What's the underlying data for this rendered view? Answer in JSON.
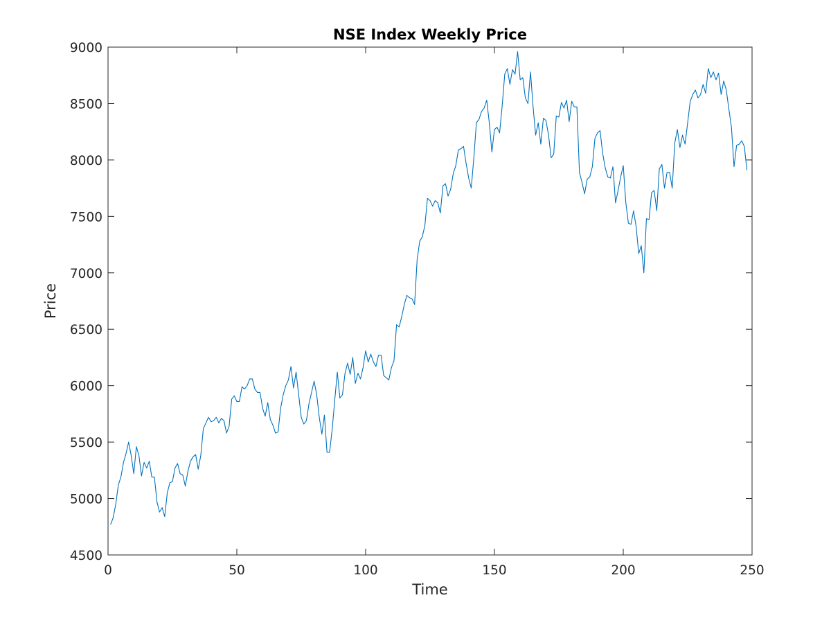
{
  "chart_data": {
    "type": "line",
    "title": "NSE Index Weekly Price",
    "xlabel": "Time",
    "ylabel": "Price",
    "xlim": [
      0,
      250
    ],
    "ylim": [
      4500,
      9000
    ],
    "x_ticks": [
      0,
      50,
      100,
      150,
      200,
      250
    ],
    "y_ticks": [
      4500,
      5000,
      5500,
      6000,
      6500,
      7000,
      7500,
      8000,
      8500,
      9000
    ],
    "grid": false,
    "legend": "none",
    "line_color": "#0072BD",
    "series": [
      {
        "name": "",
        "x_start": 1,
        "x_step": 1,
        "values": [
          4770,
          4830,
          4950,
          5120,
          5190,
          5320,
          5400,
          5500,
          5380,
          5220,
          5460,
          5380,
          5200,
          5320,
          5270,
          5330,
          5190,
          5190,
          4970,
          4880,
          4920,
          4840,
          5050,
          5140,
          5150,
          5270,
          5310,
          5220,
          5210,
          5110,
          5240,
          5330,
          5370,
          5390,
          5260,
          5380,
          5620,
          5670,
          5720,
          5680,
          5690,
          5720,
          5670,
          5710,
          5690,
          5580,
          5640,
          5880,
          5910,
          5860,
          5860,
          5990,
          5970,
          6000,
          6060,
          6060,
          5970,
          5940,
          5940,
          5800,
          5730,
          5850,
          5700,
          5650,
          5580,
          5590,
          5800,
          5920,
          6000,
          6050,
          6170,
          5980,
          6120,
          5920,
          5720,
          5660,
          5690,
          5840,
          5940,
          6040,
          5920,
          5720,
          5570,
          5740,
          5410,
          5410,
          5610,
          5870,
          6120,
          5890,
          5920,
          6110,
          6200,
          6100,
          6250,
          6020,
          6110,
          6060,
          6160,
          6310,
          6210,
          6280,
          6210,
          6170,
          6270,
          6270,
          6090,
          6070,
          6050,
          6160,
          6220,
          6540,
          6520,
          6610,
          6720,
          6800,
          6780,
          6770,
          6720,
          7120,
          7280,
          7320,
          7420,
          7660,
          7640,
          7590,
          7640,
          7620,
          7530,
          7770,
          7790,
          7680,
          7740,
          7880,
          7950,
          8090,
          8100,
          8120,
          7970,
          7840,
          7750,
          8020,
          8330,
          8360,
          8430,
          8460,
          8530,
          8330,
          8070,
          8270,
          8290,
          8240,
          8480,
          8760,
          8810,
          8670,
          8800,
          8760,
          8960,
          8710,
          8730,
          8550,
          8500,
          8780,
          8470,
          8220,
          8330,
          8140,
          8370,
          8350,
          8220,
          8020,
          8050,
          8390,
          8380,
          8510,
          8460,
          8530,
          8340,
          8520,
          8470,
          8470,
          7890,
          7800,
          7700,
          7830,
          7850,
          7940,
          8190,
          8240,
          8260,
          8060,
          7930,
          7850,
          7840,
          7940,
          7620,
          7730,
          7850,
          7950,
          7620,
          7440,
          7430,
          7550,
          7410,
          7170,
          7240,
          7000,
          7480,
          7470,
          7710,
          7730,
          7550,
          7920,
          7960,
          7750,
          7890,
          7890,
          7750,
          8150,
          8270,
          8110,
          8220,
          8140,
          8330,
          8520,
          8580,
          8620,
          8550,
          8580,
          8670,
          8590,
          8810,
          8730,
          8780,
          8710,
          8770,
          8580,
          8700,
          8620,
          8450,
          8290,
          7940,
          8130,
          8140,
          8170,
          8120,
          7910
        ]
      }
    ]
  }
}
